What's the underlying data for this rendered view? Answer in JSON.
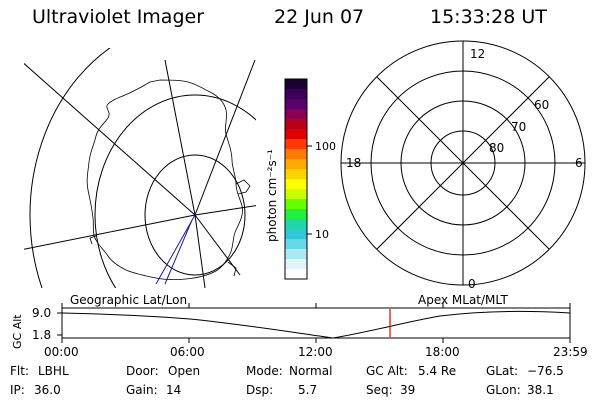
{
  "header": {
    "title": "Ultraviolet Imager",
    "date": "22 Jun 07",
    "time": "15:33:28 UT"
  },
  "colorbar": {
    "unit_label": "photon cm⁻²s⁻¹",
    "ticks": [
      "100",
      "10"
    ],
    "colors": [
      "#1a0033",
      "#3b0057",
      "#5a006a",
      "#8a0050",
      "#b80018",
      "#e00000",
      "#ff3a00",
      "#ff7a00",
      "#ffaa00",
      "#ffd400",
      "#ffff00",
      "#c8ff00",
      "#66ff00",
      "#22ee44",
      "#22d6aa",
      "#33c8d8",
      "#66d8e8",
      "#aee8f0",
      "#e4f4f6",
      "#ffffff"
    ]
  },
  "polar": {
    "mlt_labels": [
      "12",
      "18",
      "6",
      "0"
    ],
    "lat_labels": [
      "60",
      "70",
      "80"
    ]
  },
  "timeline": {
    "ylabel": "GC Alt",
    "y_max": "9.0",
    "y_min": "1.8",
    "left_label": "Geographic Lat/Lon",
    "right_label": "Apex MLat/MLT",
    "ticks": [
      "00:00",
      "06:00",
      "12:00",
      "18:00",
      "23:59"
    ],
    "marker_color": "#e00000"
  },
  "footer": {
    "flt_label": "Flt:",
    "flt_value": "LBHL",
    "ip_label": "IP:",
    "ip_value": "36.0",
    "door_label": "Door:",
    "door_value": "Open",
    "gain_label": "Gain:",
    "gain_value": "14",
    "mode_label": "Mode:",
    "mode_value": "Normal",
    "dsp_label": "Dsp:",
    "dsp_value": "5.7",
    "gcalt_label": "GC Alt:",
    "gcalt_value": "5.4 Re",
    "seq_label": "Seq:",
    "seq_value": "39",
    "glat_label": "GLat:",
    "glat_value": "−76.5",
    "glon_label": "GLon:",
    "glon_value": "38.1"
  }
}
